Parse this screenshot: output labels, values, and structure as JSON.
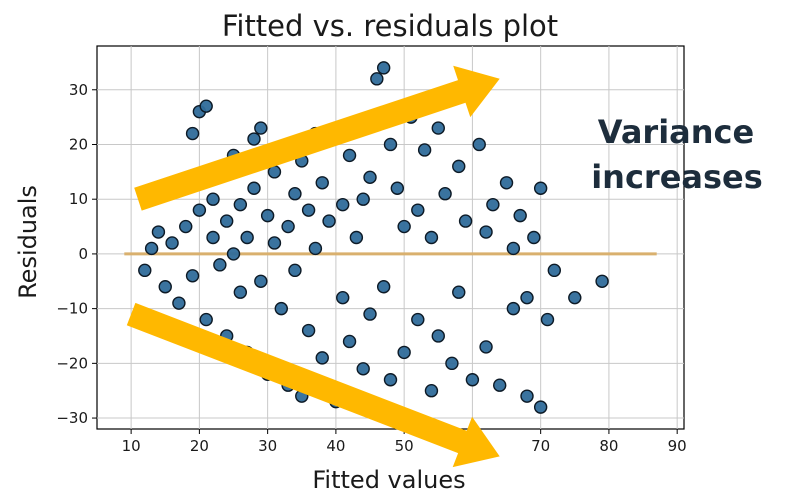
{
  "chart_data": {
    "type": "scatter",
    "title": "Fitted vs. residuals plot",
    "xlabel": "Fitted values",
    "ylabel": "Residuals",
    "xlim": [
      5,
      91
    ],
    "ylim": [
      -32,
      38
    ],
    "x_ticks": [
      10,
      20,
      30,
      40,
      50,
      60,
      70,
      80,
      90
    ],
    "x_tick_labels": [
      "10",
      "20",
      "30",
      "40",
      "50",
      "60",
      "70",
      "80",
      "90"
    ],
    "y_ticks": [
      -30,
      -20,
      -10,
      0,
      10,
      20,
      30
    ],
    "y_tick_labels": [
      "−30",
      "−20",
      "−10",
      "0",
      "10",
      "20",
      "30"
    ],
    "grid": true,
    "legend": "none",
    "point_color": "#2f6b9a",
    "point_edge_color": "#0d1a26",
    "reference_line": {
      "y": 0,
      "x_range": [
        9,
        87
      ],
      "color": "#d9b06e"
    },
    "annotation": {
      "lines": [
        "Variance",
        "increases"
      ],
      "color": "#1d2d3c"
    },
    "arrows": [
      {
        "from": [
          11,
          10
        ],
        "to": [
          64,
          32
        ],
        "direction": "upward",
        "color": "#ffb800"
      },
      {
        "from": [
          10,
          -11
        ],
        "to": [
          64,
          -37
        ],
        "direction": "downward",
        "color": "#ffb800"
      }
    ],
    "points": [
      [
        12,
        -3
      ],
      [
        13,
        1
      ],
      [
        14,
        4
      ],
      [
        15,
        -6
      ],
      [
        16,
        2
      ],
      [
        17,
        -9
      ],
      [
        18,
        5
      ],
      [
        19,
        22
      ],
      [
        19,
        -4
      ],
      [
        20,
        8
      ],
      [
        20,
        26
      ],
      [
        21,
        27
      ],
      [
        21,
        -12
      ],
      [
        22,
        3
      ],
      [
        22,
        10
      ],
      [
        23,
        -2
      ],
      [
        23,
        15
      ],
      [
        24,
        -15
      ],
      [
        24,
        6
      ],
      [
        25,
        0
      ],
      [
        25,
        18
      ],
      [
        26,
        -7
      ],
      [
        26,
        9
      ],
      [
        27,
        3
      ],
      [
        27,
        -18
      ],
      [
        28,
        12
      ],
      [
        28,
        21
      ],
      [
        29,
        23
      ],
      [
        29,
        -5
      ],
      [
        30,
        7
      ],
      [
        30,
        -22
      ],
      [
        31,
        15
      ],
      [
        31,
        2
      ],
      [
        32,
        -10
      ],
      [
        32,
        19
      ],
      [
        33,
        5
      ],
      [
        33,
        -24
      ],
      [
        34,
        11
      ],
      [
        34,
        -3
      ],
      [
        35,
        -26
      ],
      [
        35,
        17
      ],
      [
        36,
        8
      ],
      [
        36,
        -14
      ],
      [
        37,
        22
      ],
      [
        37,
        1
      ],
      [
        38,
        -19
      ],
      [
        38,
        13
      ],
      [
        39,
        6
      ],
      [
        40,
        -27
      ],
      [
        40,
        23
      ],
      [
        41,
        9
      ],
      [
        41,
        -8
      ],
      [
        42,
        18
      ],
      [
        42,
        -16
      ],
      [
        43,
        3
      ],
      [
        43,
        24
      ],
      [
        44,
        -21
      ],
      [
        44,
        10
      ],
      [
        45,
        14
      ],
      [
        45,
        -11
      ],
      [
        46,
        32
      ],
      [
        47,
        34
      ],
      [
        47,
        -6
      ],
      [
        48,
        20
      ],
      [
        48,
        -23
      ],
      [
        49,
        12
      ],
      [
        50,
        -18
      ],
      [
        50,
        5
      ],
      [
        51,
        25
      ],
      [
        52,
        -12
      ],
      [
        52,
        8
      ],
      [
        53,
        19
      ],
      [
        54,
        -25
      ],
      [
        54,
        3
      ],
      [
        55,
        23
      ],
      [
        55,
        -15
      ],
      [
        56,
        11
      ],
      [
        57,
        -20
      ],
      [
        58,
        16
      ],
      [
        58,
        -7
      ],
      [
        59,
        6
      ],
      [
        60,
        -23
      ],
      [
        61,
        20
      ],
      [
        62,
        -17
      ],
      [
        62,
        4
      ],
      [
        63,
        9
      ],
      [
        64,
        -24
      ],
      [
        65,
        13
      ],
      [
        66,
        -10
      ],
      [
        66,
        1
      ],
      [
        67,
        7
      ],
      [
        68,
        -26
      ],
      [
        68,
        -8
      ],
      [
        69,
        3
      ],
      [
        70,
        12
      ],
      [
        70,
        -28
      ],
      [
        71,
        -12
      ],
      [
        72,
        -3
      ],
      [
        75,
        -8
      ],
      [
        79,
        -5
      ]
    ]
  }
}
